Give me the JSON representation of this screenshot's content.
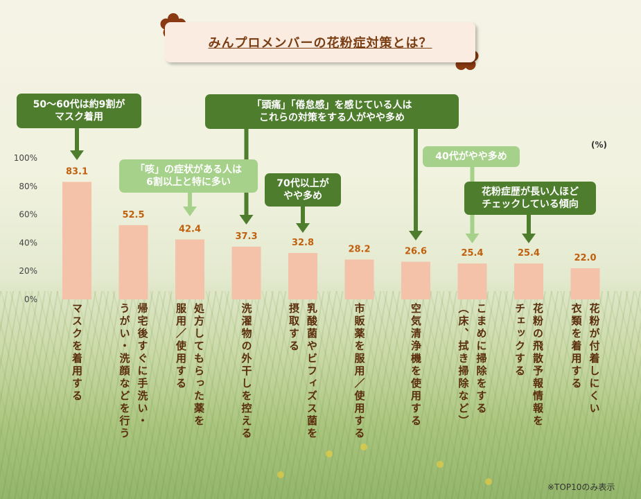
{
  "title": "みんプロメンバーの花粉症対策とは？",
  "unit": "(%)",
  "note": "※TOP10のみ表示",
  "colors": {
    "bar": "#f4c2a9",
    "value_label": "#c0600e",
    "dark_callout": "#4e7d2e",
    "light_callout": "#a6d18a",
    "title_text": "#7a3d12",
    "flower": "#8a3a12"
  },
  "callouts": [
    {
      "text": "50～60代は約9割が\nマスク着用",
      "style": "dark"
    },
    {
      "text": "「咳」の症状がある人は\n6割以上と特に多い",
      "style": "light"
    },
    {
      "text": "「頭痛」「倦怠感」を感じている人は\nこれらの対策をする人がやや多め",
      "style": "dark"
    },
    {
      "text": "70代以上が\nやや多め",
      "style": "dark"
    },
    {
      "text": "40代がやや多め",
      "style": "light"
    },
    {
      "text": "花粉症歴が長い人ほど\nチェックしている傾向",
      "style": "dark"
    }
  ],
  "chart_data": {
    "type": "bar",
    "title": "みんプロメンバーの花粉症対策とは？",
    "ylabel": "(%)",
    "ylim": [
      0,
      100
    ],
    "yticks": [
      "0%",
      "20%",
      "40%",
      "60%",
      "80%",
      "100%"
    ],
    "grid": false,
    "categories": [
      "マスクを着用する",
      "帰宅後すぐに手洗い・うがい・洗顔などを行う",
      "処方してもらった薬を服用／使用する",
      "洗濯物の外干しを控える",
      "乳酸菌やビフィズス菌を摂取する",
      "市販薬を服用／使用する",
      "空気清浄機を使用する",
      "こまめに掃除をする（床、拭き掃除など）",
      "花粉の飛散予報情報をチェックする",
      "花粉が付着しにくい衣類を着用する"
    ],
    "category_lines": [
      [
        "マスクを着用する"
      ],
      [
        "帰宅後すぐに手洗い・",
        "うがい・洗顔などを行う"
      ],
      [
        "処方してもらった薬を",
        "服用／使用する"
      ],
      [
        "洗濯物の外干しを控える"
      ],
      [
        "乳酸菌やビフィズス菌を",
        "摂取する"
      ],
      [
        "市販薬を服用／使用する"
      ],
      [
        "空気清浄機を使用する"
      ],
      [
        "こまめに掃除をする",
        "（床、拭き掃除など）"
      ],
      [
        "花粉の飛散予報情報を",
        "チェックする"
      ],
      [
        "花粉が付着しにくい",
        "衣類を着用する"
      ]
    ],
    "values": [
      83.1,
      52.5,
      42.4,
      37.3,
      32.8,
      28.2,
      26.6,
      25.4,
      25.4,
      22.0
    ],
    "value_labels": [
      "83.1",
      "52.5",
      "42.4",
      "37.3",
      "32.8",
      "28.2",
      "26.6",
      "25.4",
      "25.4",
      "22.0"
    ]
  }
}
